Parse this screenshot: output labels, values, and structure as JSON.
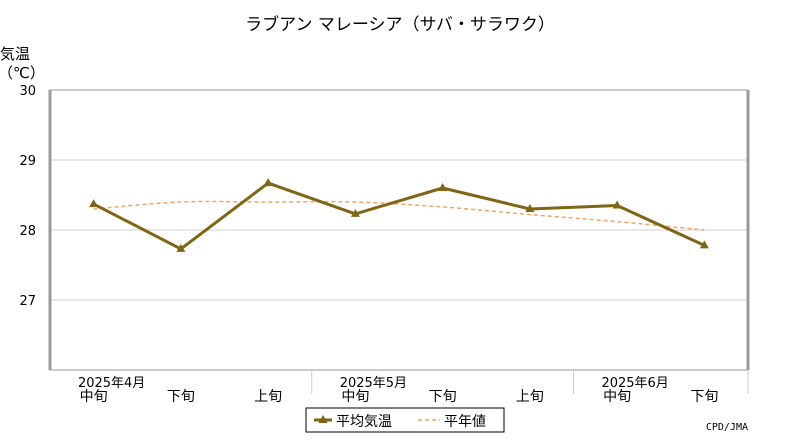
{
  "chart_data": {
    "type": "line",
    "title": "ラブアン マレーシア（サバ・サラワク）",
    "ylabel_line1": "気温",
    "ylabel_line2": "（℃）",
    "y_ticks": [
      "27",
      "28",
      "29",
      "30"
    ],
    "ylim": [
      26,
      30
    ],
    "grid": true,
    "categories": [
      "中旬",
      "下旬",
      "上旬",
      "中旬",
      "下旬",
      "上旬",
      "中旬",
      "下旬"
    ],
    "month_labels": [
      {
        "label": "2025年4月",
        "index": 0
      },
      {
        "label": "2025年5月",
        "index": 3
      },
      {
        "label": "2025年6月",
        "index": 6
      }
    ],
    "series": [
      {
        "name": "平均気温",
        "color": "#806515",
        "style": "solid-triangle-markers",
        "values": [
          28.37,
          27.73,
          28.67,
          28.23,
          28.6,
          28.3,
          28.35,
          27.78
        ]
      },
      {
        "name": "平年値",
        "color": "#f4a460",
        "style": "dashed",
        "values": [
          28.3,
          28.4,
          28.4,
          28.4,
          28.33,
          28.22,
          28.12,
          28.0
        ]
      }
    ],
    "legend_position": "bottom-center",
    "credit": "CPD/JMA"
  }
}
